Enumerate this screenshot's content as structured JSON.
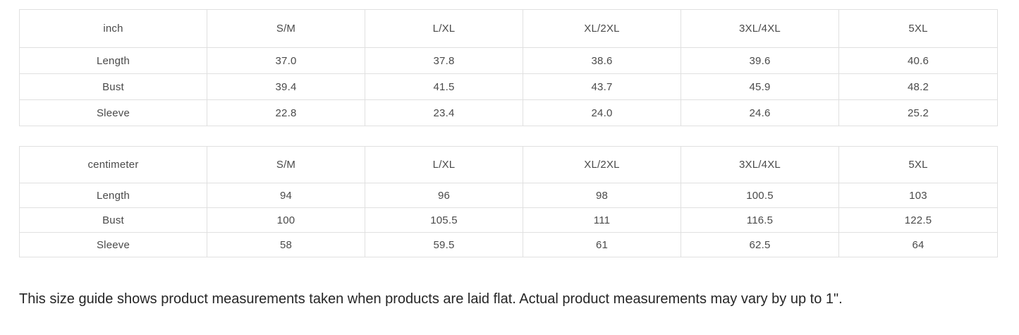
{
  "tables": [
    {
      "unit_label": "inch",
      "columns": [
        "S/M",
        "L/XL",
        "XL/2XL",
        "3XL/4XL",
        "5XL"
      ],
      "rows": [
        {
          "label": "Length",
          "values": [
            "37.0",
            "37.8",
            "38.6",
            "39.6",
            "40.6"
          ]
        },
        {
          "label": "Bust",
          "values": [
            "39.4",
            "41.5",
            "43.7",
            "45.9",
            "48.2"
          ]
        },
        {
          "label": "Sleeve",
          "values": [
            "22.8",
            "23.4",
            "24.0",
            "24.6",
            "25.2"
          ]
        }
      ]
    },
    {
      "unit_label": "centimeter",
      "columns": [
        "S/M",
        "L/XL",
        "XL/2XL",
        "3XL/4XL",
        "5XL"
      ],
      "rows": [
        {
          "label": "Length",
          "values": [
            "94",
            "96",
            "98",
            "100.5",
            "103"
          ]
        },
        {
          "label": "Bust",
          "values": [
            "100",
            "105.5",
            "111",
            "116.5",
            "122.5"
          ]
        },
        {
          "label": "Sleeve",
          "values": [
            "58",
            "59.5",
            "61",
            "62.5",
            "64"
          ]
        }
      ]
    }
  ],
  "note": "This size guide shows product measurements taken when products are laid flat. Actual product measurements may vary by up to 1\".",
  "colors": {
    "background": "#ffffff",
    "border": "#e0e0e0",
    "table_text": "#4a4a4a",
    "note_text": "#262626"
  }
}
